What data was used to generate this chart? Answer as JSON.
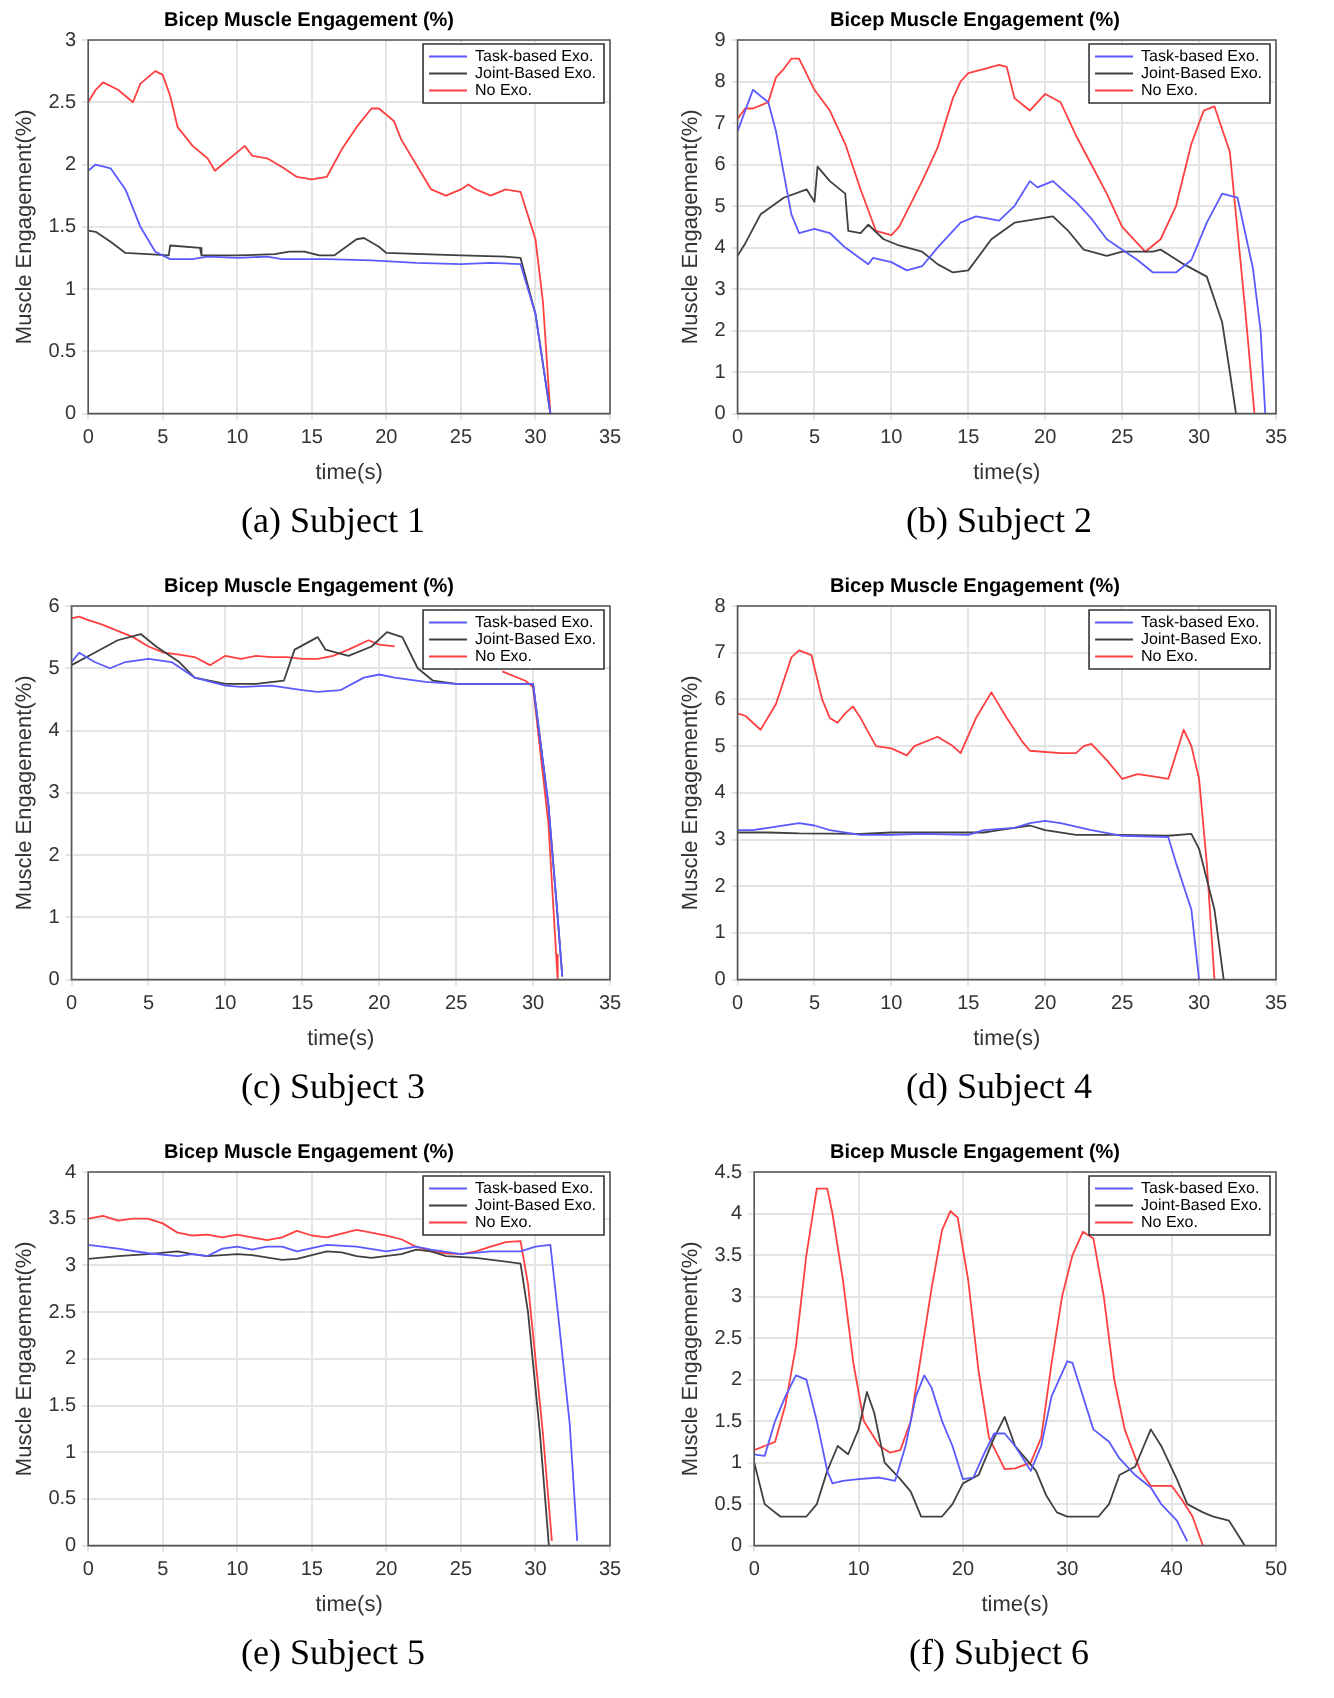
{
  "chart_data": [
    {
      "type": "line",
      "title": "Bicep Muscle Engagement (%)",
      "xlabel": "time(s)",
      "ylabel": "Muscle Engagement(%)",
      "xlim": [
        0,
        35
      ],
      "xticks": [
        0,
        5,
        10,
        15,
        20,
        25,
        30,
        35
      ],
      "ylim": [
        0,
        3
      ],
      "yticks": [
        0,
        0.5,
        1,
        1.5,
        2,
        2.5,
        3
      ],
      "grid": true,
      "legend": "top right",
      "annotations": [
        "(a) Subject 1"
      ],
      "series": [
        {
          "name": "Task-based Exo.",
          "color": "#5a5aff",
          "x": [
            0,
            0.5,
            1.5,
            2.5,
            3.5,
            4.5,
            5.5,
            7,
            8,
            10,
            12,
            13,
            16,
            19,
            22,
            25,
            27,
            29,
            30,
            30.5,
            31
          ],
          "values": [
            1.95,
            2.0,
            1.97,
            1.8,
            1.5,
            1.3,
            1.24,
            1.24,
            1.26,
            1.25,
            1.26,
            1.24,
            1.24,
            1.23,
            1.21,
            1.2,
            1.21,
            1.2,
            0.8,
            0.4,
            0
          ]
        },
        {
          "name": "Joint-Based Exo.",
          "color": "#404040",
          "x": [
            0,
            0.5,
            1.5,
            2.5,
            4,
            5.4,
            5.5,
            7.5,
            7.6,
            10,
            12.5,
            13.5,
            14.5,
            15.5,
            16.5,
            18,
            18.5,
            19.5,
            20,
            25,
            28,
            29,
            30,
            31
          ],
          "values": [
            1.47,
            1.46,
            1.38,
            1.29,
            1.28,
            1.27,
            1.35,
            1.33,
            1.27,
            1.27,
            1.28,
            1.3,
            1.3,
            1.27,
            1.27,
            1.4,
            1.41,
            1.34,
            1.29,
            1.27,
            1.26,
            1.25,
            0.8,
            0
          ]
        },
        {
          "name": "No Exo.",
          "color": "#ff4040",
          "x": [
            0,
            0.5,
            1,
            2,
            3,
            3.5,
            4.5,
            5,
            5.5,
            6,
            7,
            8,
            8.5,
            9,
            10,
            10.5,
            11,
            12,
            13,
            14,
            15,
            16,
            17,
            18,
            19,
            19.5,
            20.5,
            21,
            22,
            23,
            24,
            25,
            25.5,
            26,
            27,
            28,
            29,
            30,
            30.5,
            31
          ],
          "values": [
            2.5,
            2.6,
            2.66,
            2.6,
            2.5,
            2.65,
            2.75,
            2.72,
            2.55,
            2.3,
            2.15,
            2.05,
            1.95,
            2.0,
            2.1,
            2.15,
            2.07,
            2.05,
            1.98,
            1.9,
            1.88,
            1.9,
            2.12,
            2.3,
            2.45,
            2.45,
            2.35,
            2.2,
            2.0,
            1.8,
            1.75,
            1.8,
            1.84,
            1.8,
            1.75,
            1.8,
            1.78,
            1.4,
            0.9,
            0
          ]
        }
      ]
    },
    {
      "type": "line",
      "title": "Bicep Muscle Engagement (%)",
      "xlabel": "time(s)",
      "ylabel": "Muscle Engagement(%)",
      "xlim": [
        0,
        35
      ],
      "xticks": [
        0,
        5,
        10,
        15,
        20,
        25,
        30,
        35
      ],
      "ylim": [
        0,
        9
      ],
      "yticks": [
        0,
        1,
        2,
        3,
        4,
        5,
        6,
        7,
        8,
        9
      ],
      "grid": true,
      "legend": "top right",
      "annotations": [
        "(b) Subject 2"
      ],
      "series": [
        {
          "name": "Task-based Exo.",
          "color": "#5a5aff",
          "x": [
            0,
            0.5,
            1,
            2,
            2.5,
            3,
            3.5,
            4,
            5,
            6,
            7,
            8.5,
            8.8,
            10,
            11,
            12,
            13,
            14.5,
            15.5,
            17,
            18,
            19,
            19.5,
            20.5,
            22,
            23,
            24,
            26,
            27,
            28.5,
            29.5,
            30.5,
            31.5,
            32.5,
            33.5,
            34,
            34.3
          ],
          "values": [
            6.8,
            7.3,
            7.8,
            7.5,
            6.8,
            5.8,
            4.8,
            4.35,
            4.45,
            4.35,
            4.0,
            3.6,
            3.75,
            3.65,
            3.45,
            3.55,
            4.0,
            4.6,
            4.75,
            4.65,
            5.0,
            5.6,
            5.45,
            5.6,
            5.1,
            4.7,
            4.2,
            3.7,
            3.4,
            3.4,
            3.7,
            4.6,
            5.3,
            5.2,
            3.5,
            2,
            0
          ]
        },
        {
          "name": "Joint-Based Exo.",
          "color": "#404040",
          "x": [
            0,
            0.5,
            1.5,
            3,
            4.5,
            5,
            5.2,
            6,
            7,
            7.2,
            8,
            8.5,
            9.5,
            10.5,
            12,
            13,
            14,
            15,
            16.5,
            18,
            20.5,
            21.5,
            22.5,
            24,
            25,
            27,
            27.5,
            29,
            30.5,
            31.5,
            32,
            32.4
          ],
          "values": [
            3.8,
            4.1,
            4.8,
            5.2,
            5.4,
            5.1,
            5.95,
            5.6,
            5.3,
            4.4,
            4.35,
            4.55,
            4.2,
            4.05,
            3.9,
            3.6,
            3.4,
            3.45,
            4.2,
            4.6,
            4.75,
            4.4,
            3.95,
            3.8,
            3.9,
            3.9,
            3.95,
            3.6,
            3.3,
            2.2,
            1,
            0
          ]
        },
        {
          "name": "No Exo.",
          "color": "#ff4040",
          "x": [
            0,
            0.5,
            1,
            2,
            2.5,
            3,
            3.5,
            4,
            5,
            6,
            7,
            8,
            9,
            10,
            10.5,
            12,
            13,
            14,
            14.5,
            15,
            16,
            17,
            17.5,
            18,
            19,
            20,
            21,
            22,
            23,
            24,
            25,
            26.5,
            27.5,
            28.5,
            29.5,
            30.3,
            31,
            32,
            33,
            33.6
          ],
          "values": [
            7.1,
            7.35,
            7.35,
            7.5,
            8.1,
            8.3,
            8.55,
            8.55,
            7.8,
            7.3,
            6.5,
            5.4,
            4.4,
            4.3,
            4.5,
            5.6,
            6.4,
            7.6,
            8.0,
            8.2,
            8.3,
            8.4,
            8.35,
            7.6,
            7.3,
            7.7,
            7.5,
            6.7,
            6.0,
            5.3,
            4.5,
            3.9,
            4.2,
            5.0,
            6.5,
            7.3,
            7.4,
            6.3,
            2.5,
            0
          ]
        }
      ]
    },
    {
      "type": "line",
      "title": "Bicep Muscle Engagement (%)",
      "xlabel": "time(s)",
      "ylabel": "Muscle Engagement(%)",
      "xlim": [
        0,
        35
      ],
      "xticks": [
        0,
        5,
        10,
        15,
        20,
        25,
        30,
        35
      ],
      "ylim": [
        0,
        6
      ],
      "yticks": [
        0,
        1,
        2,
        3,
        4,
        5,
        6
      ],
      "grid": true,
      "legend": "top right",
      "annotations": [
        "(c) Subject 3"
      ],
      "series": [
        {
          "name": "Task-based Exo.",
          "color": "#5a5aff",
          "x": [
            0,
            0.5,
            1.5,
            2.5,
            3.5,
            5,
            6.5,
            8,
            10,
            11,
            13,
            15,
            16,
            17.5,
            19,
            20,
            21,
            23,
            25,
            28,
            30,
            31,
            31.6,
            31.9
          ],
          "values": [
            5.1,
            5.25,
            5.1,
            5.0,
            5.1,
            5.15,
            5.1,
            4.85,
            4.72,
            4.7,
            4.72,
            4.65,
            4.62,
            4.65,
            4.85,
            4.9,
            4.85,
            4.78,
            4.75,
            4.75,
            4.75,
            2.8,
            1,
            0.05
          ]
        },
        {
          "name": "Joint-Based Exo.",
          "color": "#404040",
          "x": [
            0,
            1.5,
            3,
            4.5,
            5.5,
            7,
            8,
            10,
            12,
            13.8,
            14.5,
            16,
            16.5,
            18,
            19.5,
            20.5,
            21.5,
            22.5,
            23.5,
            25,
            30,
            31,
            31.6,
            31.9
          ],
          "values": [
            5.05,
            5.25,
            5.45,
            5.55,
            5.35,
            5.1,
            4.85,
            4.75,
            4.75,
            4.8,
            5.3,
            5.5,
            5.3,
            5.2,
            5.35,
            5.58,
            5.5,
            5.0,
            4.8,
            4.75,
            4.75,
            2.8,
            1,
            0.05
          ]
        },
        {
          "name": "No Exo.",
          "color": "#ff4040",
          "x": [
            0,
            0.5,
            1,
            2,
            3,
            4,
            5,
            6,
            7,
            8,
            9,
            10,
            11,
            12,
            13,
            14,
            15,
            16,
            17,
            18,
            19.3,
            20,
            21,
            22,
            25,
            28,
            29.5,
            30,
            31,
            31.5,
            31.6
          ],
          "values": [
            5.8,
            5.83,
            5.78,
            5.7,
            5.6,
            5.5,
            5.35,
            5.25,
            5.22,
            5.18,
            5.05,
            5.2,
            5.15,
            5.2,
            5.18,
            5.18,
            5.15,
            5.15,
            5.2,
            5.3,
            5.45,
            5.38,
            5.35,
            null,
            null,
            4.95,
            4.8,
            4.7,
            2.5,
            0.4,
            0
          ]
        }
      ]
    },
    {
      "type": "line",
      "title": "Bicep Muscle Engagement (%)",
      "xlabel": "time(s)",
      "ylabel": "Muscle Engagement(%)",
      "xlim": [
        0,
        35
      ],
      "xticks": [
        0,
        5,
        10,
        15,
        20,
        25,
        30,
        35
      ],
      "ylim": [
        0,
        8
      ],
      "yticks": [
        0,
        1,
        2,
        3,
        4,
        5,
        6,
        7,
        8
      ],
      "grid": true,
      "legend": "top right",
      "annotations": [
        "(d) Subject 4"
      ],
      "series": [
        {
          "name": "Task-based Exo.",
          "color": "#5a5aff",
          "x": [
            0,
            1,
            2,
            4,
            5,
            6,
            8,
            10,
            12,
            15,
            16,
            18,
            19,
            20,
            21,
            23,
            25,
            28,
            28.5,
            29.5,
            30
          ],
          "values": [
            3.2,
            3.2,
            3.25,
            3.35,
            3.3,
            3.2,
            3.1,
            3.1,
            3.12,
            3.1,
            3.2,
            3.25,
            3.35,
            3.4,
            3.35,
            3.2,
            3.08,
            3.05,
            2.5,
            1.5,
            0
          ]
        },
        {
          "name": "Joint-Based Exo.",
          "color": "#404040",
          "x": [
            0,
            2,
            4,
            8,
            10,
            14,
            16,
            17,
            19,
            20,
            22,
            25,
            28,
            29.5,
            30,
            31,
            31.6
          ],
          "values": [
            3.15,
            3.15,
            3.13,
            3.12,
            3.15,
            3.15,
            3.15,
            3.2,
            3.3,
            3.2,
            3.1,
            3.1,
            3.08,
            3.12,
            2.8,
            1.5,
            0
          ]
        },
        {
          "name": "No Exo.",
          "color": "#ff4040",
          "x": [
            0,
            0.5,
            1.5,
            2.5,
            3,
            3.5,
            4,
            4.8,
            5.5,
            6,
            6.5,
            7,
            7.5,
            8,
            9,
            10,
            11,
            11.5,
            13,
            14,
            14.5,
            15.5,
            16.5,
            17.5,
            18.5,
            19,
            21,
            22,
            22.5,
            23,
            24,
            25,
            26,
            27,
            28,
            29,
            29.5,
            30,
            30.5,
            31
          ],
          "values": [
            5.7,
            5.65,
            5.35,
            5.9,
            6.4,
            6.9,
            7.05,
            6.95,
            6.0,
            5.6,
            5.5,
            5.7,
            5.85,
            5.6,
            5.0,
            4.95,
            4.8,
            5.0,
            5.2,
            5.0,
            4.85,
            5.6,
            6.15,
            5.6,
            5.1,
            4.9,
            4.85,
            4.85,
            5.0,
            5.05,
            4.7,
            4.3,
            4.4,
            4.35,
            4.3,
            5.35,
            5.0,
            4.3,
            2.5,
            0
          ]
        }
      ]
    },
    {
      "type": "line",
      "title": "Bicep Muscle Engagement (%)",
      "xlabel": "time(s)",
      "ylabel": "Muscle Engagement(%)",
      "xlim": [
        0,
        35
      ],
      "xticks": [
        0,
        5,
        10,
        15,
        20,
        25,
        30,
        35
      ],
      "ylim": [
        0,
        4
      ],
      "yticks": [
        0,
        0.5,
        1,
        1.5,
        2,
        2.5,
        3,
        3.5,
        4
      ],
      "grid": true,
      "legend": "top right",
      "annotations": [
        "(e) Subject 5"
      ],
      "series": [
        {
          "name": "Task-based Exo.",
          "color": "#5a5aff",
          "x": [
            0,
            2,
            4,
            6,
            7,
            8,
            9,
            10,
            11,
            12,
            13,
            14,
            16,
            18,
            20,
            22,
            23,
            25,
            27,
            29,
            30,
            31,
            31.5,
            32.3,
            32.8
          ],
          "values": [
            3.22,
            3.18,
            3.13,
            3.1,
            3.12,
            3.1,
            3.18,
            3.2,
            3.17,
            3.2,
            3.2,
            3.15,
            3.22,
            3.2,
            3.15,
            3.2,
            3.17,
            3.12,
            3.15,
            3.15,
            3.2,
            3.22,
            2.5,
            1.3,
            0.05
          ]
        },
        {
          "name": "Joint-Based Exo.",
          "color": "#404040",
          "x": [
            0,
            2,
            4,
            6,
            7,
            8,
            10,
            11,
            13,
            14,
            15,
            16,
            17,
            18,
            19,
            21,
            22,
            23,
            24,
            26,
            29,
            29.5,
            30.3,
            30.9
          ],
          "values": [
            3.07,
            3.1,
            3.12,
            3.15,
            3.12,
            3.1,
            3.12,
            3.11,
            3.06,
            3.07,
            3.11,
            3.15,
            3.14,
            3.1,
            3.08,
            3.12,
            3.17,
            3.15,
            3.1,
            3.08,
            3.02,
            2.5,
            1.2,
            0
          ]
        },
        {
          "name": "No Exo.",
          "color": "#ff4040",
          "x": [
            0,
            1,
            2,
            3,
            4,
            5,
            6,
            7,
            8,
            9,
            10,
            11,
            12,
            13,
            14,
            15,
            16,
            17,
            18,
            19,
            20,
            21,
            22,
            23,
            24,
            25,
            26,
            27,
            28,
            29,
            29.5,
            30.5,
            31.1
          ],
          "values": [
            3.5,
            3.53,
            3.48,
            3.5,
            3.5,
            3.45,
            3.35,
            3.32,
            3.33,
            3.3,
            3.33,
            3.3,
            3.27,
            3.3,
            3.37,
            3.32,
            3.3,
            3.34,
            3.38,
            3.35,
            3.32,
            3.28,
            3.2,
            3.15,
            3.13,
            3.12,
            3.15,
            3.2,
            3.25,
            3.26,
            2.8,
            1.2,
            0.05
          ]
        }
      ]
    },
    {
      "type": "line",
      "title": "Bicep Muscle Engagement (%)",
      "xlabel": "time(s)",
      "ylabel": "Muscle Engagement(%)",
      "xlim": [
        0,
        50
      ],
      "xticks": [
        0,
        10,
        20,
        30,
        40,
        50
      ],
      "ylim": [
        0,
        4.5
      ],
      "yticks": [
        0,
        0.5,
        1,
        1.5,
        2,
        2.5,
        3,
        3.5,
        4,
        4.5
      ],
      "grid": true,
      "legend": "top right",
      "annotations": [
        "(f) Subject 6"
      ],
      "series": [
        {
          "name": "Task-based Exo.",
          "color": "#5a5aff",
          "x": [
            0,
            1,
            2,
            3,
            4,
            5,
            6,
            7,
            7.5,
            8.5,
            10,
            12,
            13.5,
            14.5,
            15.5,
            16.3,
            17,
            18,
            19,
            20,
            21,
            22,
            23,
            24,
            25,
            26,
            26.5,
            27.5,
            28.5,
            30,
            30.5,
            31.5,
            32.5,
            34,
            35,
            36.5,
            38,
            39,
            40.5,
            41.5
          ],
          "values": [
            1.1,
            1.08,
            1.5,
            1.8,
            2.05,
            2.0,
            1.5,
            0.9,
            0.75,
            0.78,
            0.8,
            0.82,
            0.78,
            1.2,
            1.8,
            2.05,
            1.9,
            1.5,
            1.2,
            0.8,
            0.82,
            1.1,
            1.35,
            1.35,
            1.2,
            1.0,
            0.9,
            1.2,
            1.8,
            2.22,
            2.2,
            1.8,
            1.4,
            1.25,
            1.05,
            0.85,
            0.7,
            0.5,
            0.3,
            0.05
          ]
        },
        {
          "name": "Joint-Based Exo.",
          "color": "#404040",
          "x": [
            0,
            1,
            2.5,
            5,
            6,
            7,
            8,
            9,
            10,
            10.8,
            11.5,
            12.5,
            14,
            15,
            16,
            18,
            19,
            20,
            21.5,
            23,
            24,
            25,
            26,
            27,
            28,
            29,
            30,
            33,
            34,
            35,
            36.5,
            38,
            39,
            40.5,
            41.5,
            43,
            44,
            45.5,
            46.5,
            47
          ],
          "values": [
            1.0,
            0.5,
            0.35,
            0.35,
            0.5,
            0.9,
            1.2,
            1.1,
            1.4,
            1.85,
            1.6,
            1.0,
            0.8,
            0.65,
            0.35,
            0.35,
            0.5,
            0.75,
            0.85,
            1.3,
            1.55,
            1.2,
            1.05,
            0.9,
            0.6,
            0.4,
            0.35,
            0.35,
            0.5,
            0.85,
            0.95,
            1.4,
            1.2,
            0.8,
            0.5,
            0.4,
            0.35,
            0.3,
            0.1,
            0
          ]
        },
        {
          "name": "No Exo.",
          "color": "#ff4040",
          "x": [
            0,
            1,
            2,
            3,
            4,
            5,
            6,
            7,
            7.5,
            8.5,
            9.5,
            10.5,
            12,
            13,
            14,
            15,
            16,
            17,
            18,
            18.8,
            19.5,
            20.5,
            21.5,
            22.5,
            24,
            25,
            26.5,
            27.5,
            28.5,
            29.5,
            30.5,
            31.5,
            32.5,
            33.5,
            34.5,
            35.5,
            37,
            38,
            40,
            41,
            42,
            43
          ],
          "values": [
            1.15,
            1.2,
            1.25,
            1.7,
            2.4,
            3.5,
            4.3,
            4.3,
            4.0,
            3.2,
            2.2,
            1.5,
            1.2,
            1.12,
            1.15,
            1.5,
            2.3,
            3.1,
            3.8,
            4.03,
            3.95,
            3.2,
            2.1,
            1.3,
            0.92,
            0.93,
            1.0,
            1.3,
            2.2,
            3.0,
            3.5,
            3.78,
            3.7,
            3.0,
            2.0,
            1.4,
            0.9,
            0.72,
            0.72,
            0.55,
            0.35,
            0
          ]
        }
      ]
    }
  ]
}
